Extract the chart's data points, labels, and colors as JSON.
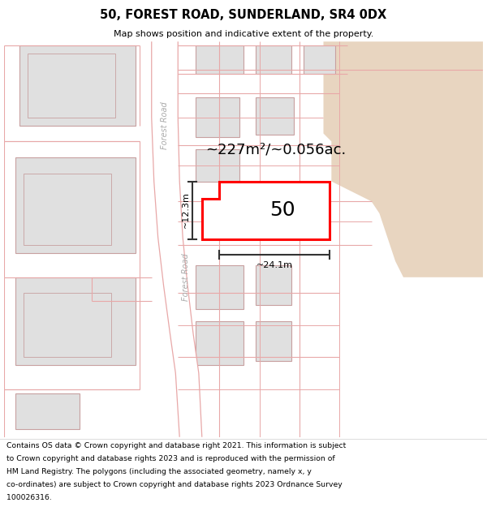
{
  "title_line1": "50, FOREST ROAD, SUNDERLAND, SR4 0DX",
  "title_line2": "Map shows position and indicative extent of the property.",
  "footer_lines": [
    "Contains OS data © Crown copyright and database right 2021. This information is subject",
    "to Crown copyright and database rights 2023 and is reproduced with the permission of",
    "HM Land Registry. The polygons (including the associated geometry, namely x, y",
    "co-ordinates) are subject to Crown copyright and database rights 2023 Ordnance Survey",
    "100026316."
  ],
  "map_bg": "#ffffff",
  "road_line_color": "#e8a8a8",
  "building_fill": "#e0e0e0",
  "building_border": "#c8a0a0",
  "highlight_fill": "#ffffff",
  "highlight_border": "#ff0000",
  "tan_fill": "#e8d5c0",
  "dim_color": "#333333",
  "area_text": "~227m²/~0.056ac.",
  "number_text": "50",
  "width_text": "~24.1m",
  "height_text": "~12.3m",
  "road_label_color": "#aaaaaa",
  "road_label": "Forest Road"
}
